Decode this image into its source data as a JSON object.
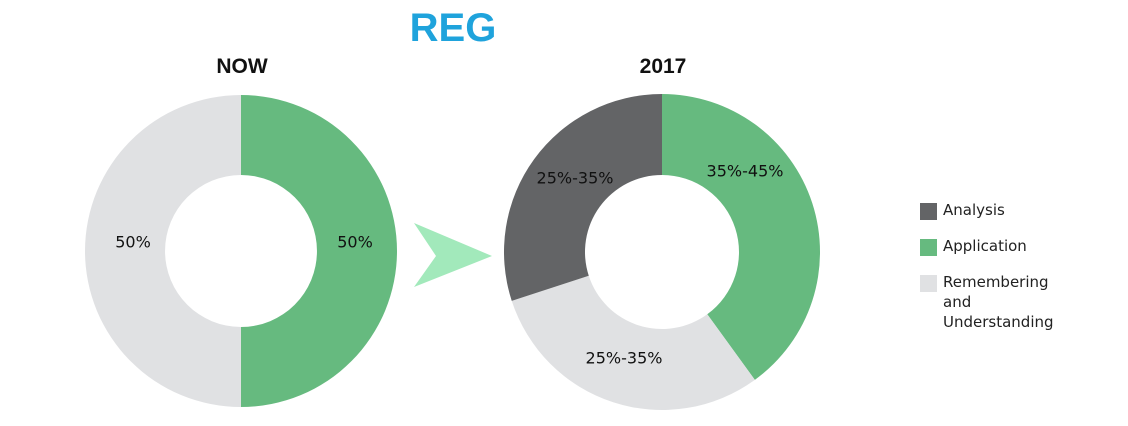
{
  "title": "REG",
  "legend": [
    {
      "label": "Analysis",
      "color": "#636466"
    },
    {
      "label": "Application",
      "color": "#66ba7f"
    },
    {
      "label": "Remembering\nand\nUnderstanding",
      "color": "#e0e1e3"
    }
  ],
  "arrow_color": "#a2e9bb",
  "chart_data": [
    {
      "type": "pie",
      "title": "NOW",
      "slices": [
        {
          "name": "Application",
          "value": 50,
          "label": "50%",
          "color": "#66ba7f"
        },
        {
          "name": "Remembering and Understanding",
          "value": 50,
          "label": "50%",
          "color": "#e0e1e3"
        }
      ]
    },
    {
      "type": "pie",
      "title": "2017",
      "slices": [
        {
          "name": "Application",
          "value": 40,
          "label": "35%-45%",
          "color": "#66ba7f"
        },
        {
          "name": "Remembering and Understanding",
          "value": 30,
          "label": "25%-35%",
          "color": "#e0e1e3"
        },
        {
          "name": "Analysis",
          "value": 30,
          "label": "25%-35%",
          "color": "#636466"
        }
      ]
    }
  ]
}
